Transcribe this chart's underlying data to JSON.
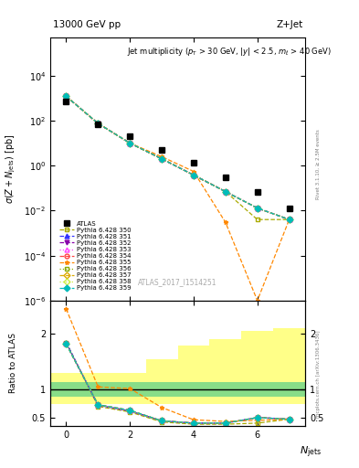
{
  "title_top": "13000 GeV pp",
  "title_right": "Z+Jet",
  "ylabel_main": "$\\sigma(Z + N_\\mathrm{jets})$ [pb]",
  "ylabel_ratio": "Ratio to ATLAS",
  "xlabel": "$N_\\mathrm{jets}$",
  "annotation": "Jet multiplicity ($p_\\mathrm{T}$ > 30 GeV, $|y|$ < 2.5, $m_\\ell$ > 40 GeV)",
  "watermark": "ATLAS_2017_I1514251",
  "right_label1": "Rivet 3.1.10, ≥ 2.5M events",
  "right_label2": "mcplots.cern.ch [arXiv:1306.3436]",
  "ylim_main": [
    1e-06,
    500000.0
  ],
  "ylim_ratio": [
    0.35,
    2.6
  ],
  "xlim": [
    -0.5,
    7.5
  ],
  "atlas_x": [
    0,
    1,
    2,
    3,
    4,
    5,
    6,
    7
  ],
  "atlas_y": [
    700,
    70,
    20,
    5.0,
    1.3,
    0.3,
    0.07,
    0.013
  ],
  "pythia_x": [
    0,
    1,
    2,
    3,
    4,
    5,
    6,
    7
  ],
  "series": [
    {
      "label": "Pythia 6.428 350",
      "color": "#aaaa00",
      "linestyle": "--",
      "marker": "s",
      "markerfill": "none",
      "y_main": [
        1200,
        75,
        10,
        2.0,
        0.38,
        0.07,
        0.004,
        0.004
      ],
      "y_ratio": [
        1.85,
        0.7,
        0.6,
        0.42,
        0.38,
        0.38,
        0.4,
        0.47
      ]
    },
    {
      "label": "Pythia 6.428 351",
      "color": "#3333ff",
      "linestyle": "--",
      "marker": "^",
      "markerfill": "full",
      "y_main": [
        1200,
        75,
        10,
        2.0,
        0.38,
        0.07,
        0.013,
        0.004
      ],
      "y_ratio": [
        1.85,
        0.72,
        0.62,
        0.44,
        0.4,
        0.4,
        0.5,
        0.47
      ]
    },
    {
      "label": "Pythia 6.428 352",
      "color": "#8800aa",
      "linestyle": "--",
      "marker": "v",
      "markerfill": "full",
      "y_main": [
        1200,
        75,
        10,
        2.0,
        0.38,
        0.07,
        0.013,
        0.004
      ],
      "y_ratio": [
        1.83,
        0.72,
        0.62,
        0.44,
        0.4,
        0.4,
        0.5,
        0.47
      ]
    },
    {
      "label": "Pythia 6.428 353",
      "color": "#ff44ff",
      "linestyle": ":",
      "marker": "^",
      "markerfill": "none",
      "y_main": [
        1200,
        75,
        10,
        2.0,
        0.38,
        0.07,
        0.013,
        0.004
      ],
      "y_ratio": [
        1.82,
        0.73,
        0.63,
        0.44,
        0.4,
        0.4,
        0.5,
        0.47
      ]
    },
    {
      "label": "Pythia 6.428 354",
      "color": "#ff4444",
      "linestyle": "--",
      "marker": "o",
      "markerfill": "none",
      "y_main": [
        1200,
        75,
        10,
        2.0,
        0.38,
        0.07,
        0.013,
        0.004
      ],
      "y_ratio": [
        1.82,
        0.73,
        0.63,
        0.44,
        0.4,
        0.4,
        0.5,
        0.47
      ]
    },
    {
      "label": "Pythia 6.428 355",
      "color": "#ff8800",
      "linestyle": "--",
      "marker": "*",
      "markerfill": "full",
      "y_main": [
        1200,
        75,
        10,
        2.5,
        0.55,
        0.003,
        1e-06,
        0.004
      ],
      "y_ratio": [
        2.45,
        1.05,
        1.02,
        0.68,
        0.46,
        0.43,
        1e-06,
        0.47
      ],
      "has_spike": true,
      "spike_x": 6,
      "spike_y_main": 1e-06,
      "spike_y_ratio": 1e-06
    },
    {
      "label": "Pythia 6.428 356",
      "color": "#88aa00",
      "linestyle": ":",
      "marker": "s",
      "markerfill": "none",
      "y_main": [
        1200,
        75,
        10,
        2.0,
        0.38,
        0.07,
        0.013,
        0.004
      ],
      "y_ratio": [
        1.82,
        0.73,
        0.63,
        0.44,
        0.4,
        0.4,
        0.5,
        0.47
      ]
    },
    {
      "label": "Pythia 6.428 357",
      "color": "#ddaa00",
      "linestyle": "--",
      "marker": "D",
      "markerfill": "none",
      "y_main": [
        1200,
        75,
        10,
        2.0,
        0.38,
        0.07,
        0.013,
        0.004
      ],
      "y_ratio": [
        1.82,
        0.73,
        0.63,
        0.44,
        0.4,
        0.4,
        0.5,
        0.47
      ]
    },
    {
      "label": "Pythia 6.428 358",
      "color": "#ccee44",
      "linestyle": ":",
      "marker": "D",
      "markerfill": "none",
      "y_main": [
        1200,
        75,
        10,
        2.0,
        0.38,
        0.07,
        0.013,
        0.004
      ],
      "y_ratio": [
        1.82,
        0.73,
        0.63,
        0.44,
        0.4,
        0.4,
        0.5,
        0.47
      ]
    },
    {
      "label": "Pythia 6.428 359",
      "color": "#00bbbb",
      "linestyle": "--",
      "marker": "D",
      "markerfill": "full",
      "y_main": [
        1200,
        75,
        10,
        2.0,
        0.38,
        0.07,
        0.013,
        0.004
      ],
      "y_ratio": [
        1.82,
        0.73,
        0.63,
        0.44,
        0.4,
        0.4,
        0.5,
        0.47
      ]
    }
  ],
  "band_x_edges": [
    -0.5,
    0.5,
    1.5,
    2.5,
    3.5,
    4.5,
    5.5,
    6.5,
    7.5
  ],
  "band_green_lo": [
    0.87,
    0.87,
    0.87,
    0.87,
    0.87,
    0.87,
    0.87,
    0.87
  ],
  "band_green_hi": [
    1.13,
    1.13,
    1.13,
    1.13,
    1.13,
    1.13,
    1.13,
    1.13
  ],
  "band_yellow_lo": [
    0.75,
    0.75,
    0.75,
    0.75,
    0.75,
    0.75,
    0.75,
    0.75
  ],
  "band_yellow_hi": [
    1.3,
    1.3,
    1.3,
    1.55,
    1.8,
    1.9,
    2.05,
    2.1
  ]
}
